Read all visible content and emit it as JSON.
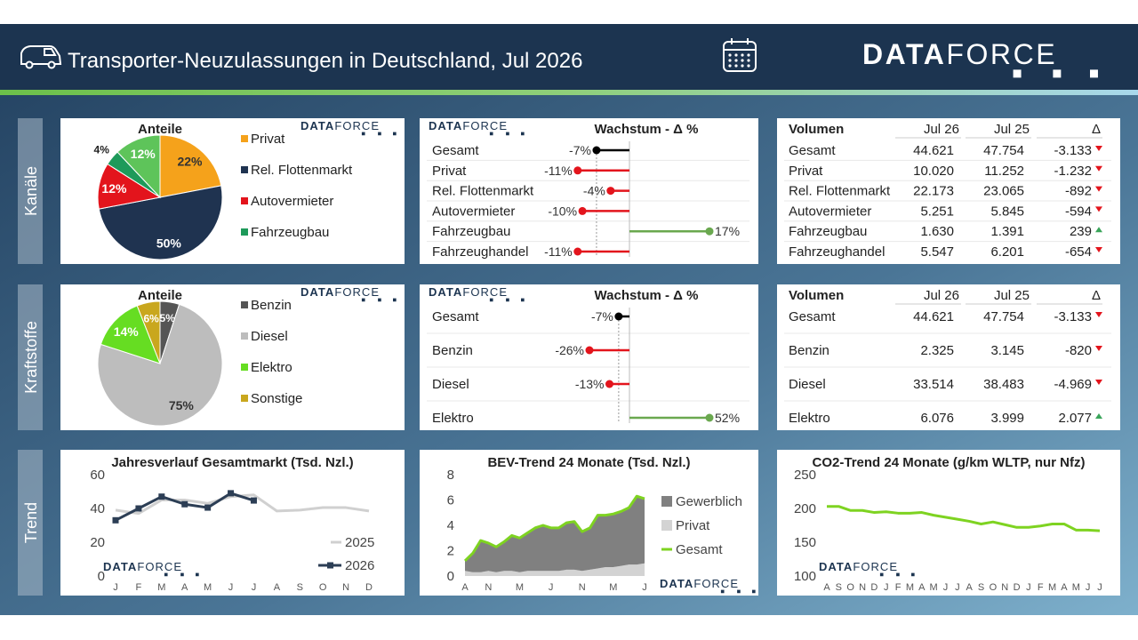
{
  "header": {
    "title": "Transporter-Neuzulassungen in Deutschland, Jul 2026",
    "logo": [
      "DATA",
      "FORCE"
    ]
  },
  "sections": [
    "Kanäle",
    "Kraftstoffe",
    "Trend"
  ],
  "chart_data": [
    {
      "type": "pie",
      "title": "Anteile",
      "categories": [
        "Privat",
        "Rel. Flottenmarkt",
        "Autovermieter",
        "Fahrzeugbau",
        null
      ],
      "values": [
        22,
        50,
        12,
        4,
        12
      ],
      "value_labels": [
        "22%",
        "50%",
        "12%",
        "4%",
        "12%"
      ],
      "colors": [
        "#f5a21b",
        "#1f3350",
        "#e3141c",
        "#1e9a5a",
        "#5ec45a"
      ]
    },
    {
      "type": "lollipop",
      "title": "Wachstum - Δ %",
      "categories": [
        "Gesamt",
        "Privat",
        "Rel. Flottenmarkt",
        "Autovermieter",
        "Fahrzeugbau",
        "Fahrzeughandel"
      ],
      "values": [
        -7,
        -11,
        -4,
        -10,
        17,
        -11
      ],
      "value_labels": [
        "-7%",
        "-11%",
        "-4%",
        "-10%",
        "17%",
        "-11%"
      ],
      "total_color": "#000000",
      "negative_color": "#e3141c",
      "positive_color": "#6aa84f"
    },
    {
      "type": "pie",
      "title": "Anteile",
      "categories": [
        "Benzin",
        "Diesel",
        "Elektro",
        "Sonstige"
      ],
      "values": [
        5,
        75,
        14,
        6
      ],
      "value_labels": [
        "5%",
        "75%",
        "14%",
        "6%"
      ],
      "colors": [
        "#555555",
        "#bdbdbd",
        "#66dd22",
        "#c9a71e"
      ]
    },
    {
      "type": "lollipop",
      "title": "Wachstum - Δ %",
      "categories": [
        "Gesamt",
        "Benzin",
        "Diesel",
        "Elektro"
      ],
      "values": [
        -7,
        -26,
        -13,
        52
      ],
      "value_labels": [
        "-7%",
        "-26%",
        "-13%",
        "52%"
      ],
      "total_color": "#000000",
      "negative_color": "#e3141c",
      "positive_color": "#6aa84f"
    },
    {
      "type": "line",
      "title": "Jahresverlauf Gesamtmarkt (Tsd. Nzl.)",
      "categories": [
        "J",
        "F",
        "M",
        "A",
        "M",
        "J",
        "J",
        "A",
        "S",
        "O",
        "N",
        "D"
      ],
      "series": [
        {
          "name": "2025",
          "color": "#d0d0d0",
          "values": [
            39,
            37,
            45,
            45,
            43,
            47,
            48,
            38.5,
            39,
            40.5,
            40.5,
            38.5
          ]
        },
        {
          "name": "2026",
          "color": "#2c3e55",
          "markers": true,
          "values": [
            33,
            40,
            47,
            42.5,
            40.5,
            49,
            44.7,
            null,
            null,
            null,
            null,
            null
          ]
        }
      ],
      "ylim": [
        0,
        60
      ],
      "yticks": [
        0,
        20,
        40,
        60
      ]
    },
    {
      "type": "area",
      "title": "BEV-Trend 24 Monate (Tsd. Nzl.)",
      "categories": [
        "A",
        null,
        null,
        "N",
        null,
        null,
        null,
        "M",
        null,
        null,
        null,
        "J",
        null,
        null,
        null,
        "N",
        null,
        null,
        null,
        "M",
        null,
        null,
        null,
        "J"
      ],
      "series": [
        {
          "name": "Gewerblich",
          "kind": "area",
          "color": "#808080",
          "values": [
            0.8,
            1.5,
            2.5,
            2.2,
            2.0,
            2.3,
            2.8,
            2.7,
            3.0,
            3.4,
            3.6,
            3.4,
            3.4,
            3.7,
            3.8,
            3.1,
            3.3,
            4.2,
            4.1,
            4.2,
            4.3,
            4.5,
            5.4,
            5.1
          ]
        },
        {
          "name": "Privat",
          "kind": "area",
          "color": "#d3d3d3",
          "values": [
            0.4,
            0.3,
            0.3,
            0.4,
            0.3,
            0.4,
            0.4,
            0.3,
            0.4,
            0.4,
            0.4,
            0.4,
            0.4,
            0.5,
            0.5,
            0.4,
            0.5,
            0.6,
            0.7,
            0.7,
            0.8,
            0.9,
            0.9,
            1.0
          ]
        },
        {
          "name": "Gesamt",
          "kind": "line",
          "color": "#7ed321",
          "values": [
            1.2,
            1.8,
            2.8,
            2.6,
            2.3,
            2.7,
            3.2,
            3.0,
            3.4,
            3.8,
            4.0,
            3.8,
            3.8,
            4.2,
            4.3,
            3.5,
            3.8,
            4.8,
            4.8,
            4.9,
            5.1,
            5.4,
            6.3,
            6.1
          ]
        }
      ],
      "ylim": [
        0,
        8
      ],
      "yticks": [
        0,
        2,
        4,
        6,
        8
      ]
    },
    {
      "type": "line",
      "title": "CO2-Trend 24 Monate (g/km WLTP, nur Nfz)",
      "categories": [
        "A",
        "S",
        "O",
        "N",
        "D",
        "J",
        "F",
        "M",
        "A",
        "M",
        "J",
        "J",
        "A",
        "S",
        "O",
        "N",
        "D",
        "J",
        "F",
        "M",
        "A",
        "M",
        "J",
        "J"
      ],
      "series": [
        {
          "color": "#7ed321",
          "values": [
            203,
            203,
            197,
            197,
            194,
            195,
            193,
            193,
            194,
            190,
            187,
            184,
            181,
            177,
            180,
            176,
            172,
            172,
            174,
            177,
            177,
            168,
            168,
            167
          ]
        }
      ],
      "ylim": [
        100,
        250
      ],
      "yticks": [
        100,
        150,
        200,
        250
      ]
    }
  ],
  "tables": [
    {
      "header": [
        "Volumen",
        "Jul 26",
        "Jul 25",
        "Δ"
      ],
      "rows": [
        [
          "Gesamt",
          "44.621",
          "47.754",
          "-3.133"
        ],
        [
          "Privat",
          "10.020",
          "11.252",
          "-1.232"
        ],
        [
          "Rel. Flottenmarkt",
          "22.173",
          "23.065",
          "-892"
        ],
        [
          "Autovermieter",
          "5.251",
          "5.845",
          "-594"
        ],
        [
          "Fahrzeugbau",
          "1.630",
          "1.391",
          "239"
        ],
        [
          "Fahrzeughandel",
          "5.547",
          "6.201",
          "-654"
        ]
      ]
    },
    {
      "header": [
        "Volumen",
        "Jul 26",
        "Jul 25",
        "Δ"
      ],
      "rows": [
        [
          "Gesamt",
          "44.621",
          "47.754",
          "-3.133"
        ],
        [
          "Benzin",
          "2.325",
          "3.145",
          "-820"
        ],
        [
          "Diesel",
          "33.514",
          "38.483",
          "-4.969"
        ],
        [
          "Elektro",
          "6.076",
          "3.999",
          "2.077"
        ]
      ]
    }
  ]
}
